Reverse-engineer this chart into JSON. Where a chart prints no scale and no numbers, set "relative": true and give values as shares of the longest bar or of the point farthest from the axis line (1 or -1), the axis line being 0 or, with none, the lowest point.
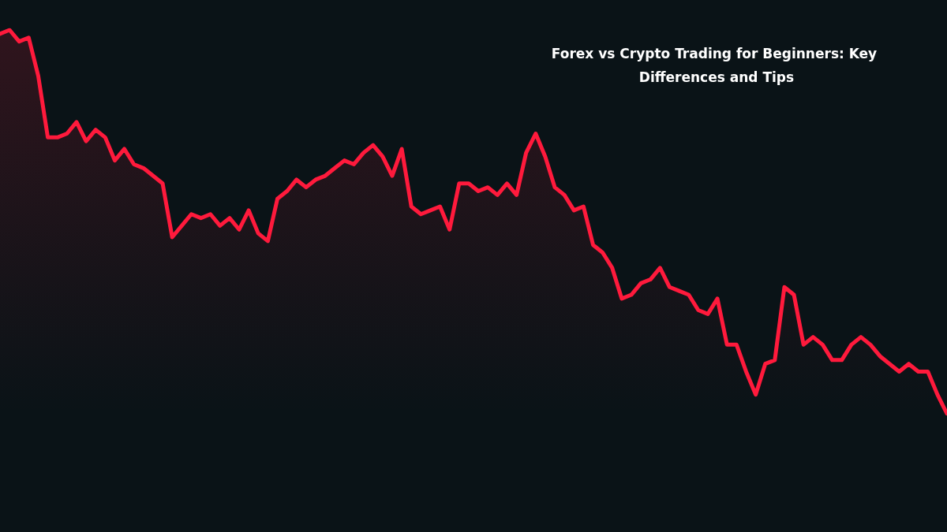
{
  "chart_data": {
    "type": "area",
    "title": "Forex vs Crypto Trading for Beginners: Key Differences and Tips",
    "relative": true,
    "categories": [
      null,
      null,
      null,
      null,
      null,
      null,
      null,
      null,
      null,
      null,
      null,
      null,
      null,
      null,
      null,
      null,
      null,
      null,
      null,
      null,
      null,
      null,
      null,
      null,
      null,
      null,
      null,
      null,
      null,
      null,
      null,
      null,
      null,
      null,
      null,
      null,
      null,
      null,
      null,
      null,
      null,
      null,
      null,
      null,
      null,
      null,
      null,
      null,
      null,
      null,
      null,
      null,
      null,
      null,
      null,
      null,
      null,
      null,
      null,
      null,
      null,
      null,
      null,
      null,
      null,
      null,
      null,
      null,
      null,
      null,
      null,
      null,
      null,
      null,
      null,
      null,
      null,
      null,
      null,
      null,
      null,
      null,
      null,
      null,
      null,
      null,
      null,
      null,
      null,
      null,
      null,
      null,
      null,
      null,
      null,
      null,
      null,
      null,
      null,
      null
    ],
    "series": [
      {
        "color": "#ff1a3c",
        "values": [
          0.99,
          1.0,
          0.97,
          0.98,
          0.88,
          0.72,
          0.72,
          0.73,
          0.76,
          0.71,
          0.74,
          0.72,
          0.66,
          0.69,
          0.65,
          0.64,
          0.62,
          0.6,
          0.46,
          0.49,
          0.52,
          0.51,
          0.52,
          0.49,
          0.51,
          0.48,
          0.53,
          0.47,
          0.45,
          0.56,
          0.58,
          0.61,
          0.59,
          0.61,
          0.62,
          0.64,
          0.66,
          0.65,
          0.68,
          0.7,
          0.67,
          0.62,
          0.69,
          0.54,
          0.52,
          0.53,
          0.54,
          0.48,
          0.6,
          0.6,
          0.58,
          0.59,
          0.57,
          0.6,
          0.57,
          0.68,
          0.73,
          0.67,
          0.59,
          0.57,
          0.53,
          0.54,
          0.44,
          0.42,
          0.38,
          0.3,
          0.31,
          0.34,
          0.35,
          0.38,
          0.33,
          0.32,
          0.31,
          0.27,
          0.26,
          0.3,
          0.18,
          0.18,
          0.11,
          0.05,
          0.13,
          0.14,
          0.33,
          0.31,
          0.18,
          0.2,
          0.18,
          0.14,
          0.14,
          0.18,
          0.2,
          0.18,
          0.15,
          0.13,
          0.11,
          0.13,
          0.11,
          0.11,
          0.05,
          0.0
        ]
      }
    ]
  }
}
